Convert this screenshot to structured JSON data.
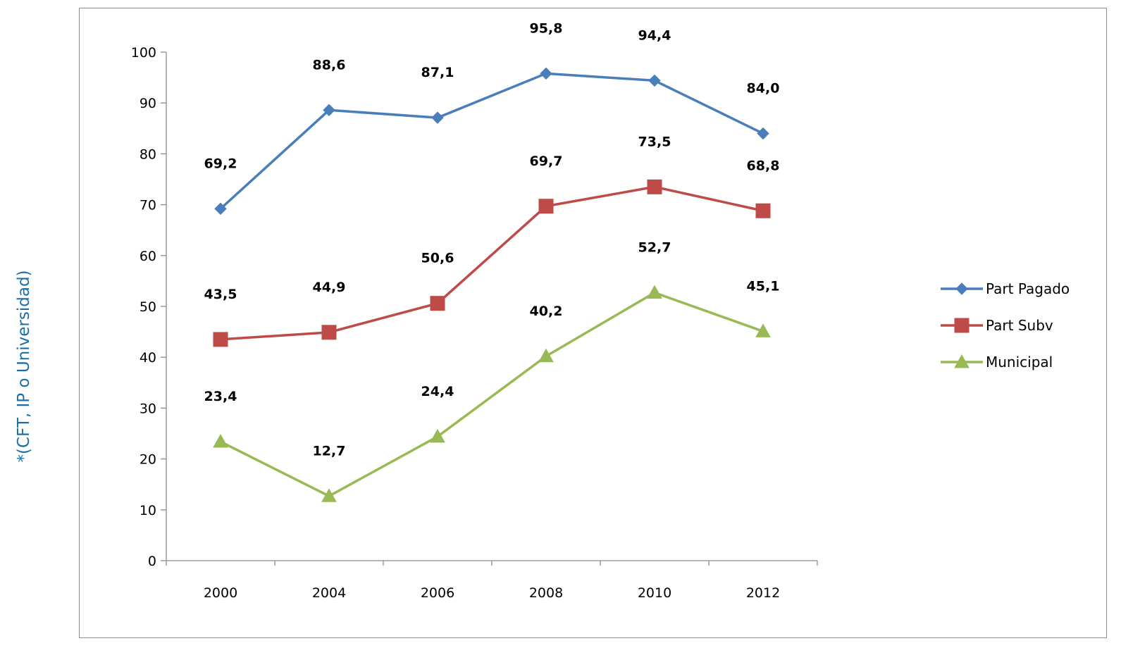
{
  "side_note": "*(CFT, IP o Universidad)",
  "chart_data": {
    "type": "line",
    "title": "",
    "xlabel": "",
    "ylabel": "",
    "categories": [
      "2000",
      "2004",
      "2006",
      "2008",
      "2010",
      "2012"
    ],
    "ylim": [
      0,
      100
    ],
    "yticks": [
      0,
      10,
      20,
      30,
      40,
      50,
      60,
      70,
      80,
      90,
      100
    ],
    "grid": false,
    "legend_position": "right",
    "series": [
      {
        "name": "Part Pagado",
        "marker": "diamond",
        "color": "#4a7ebb",
        "values": [
          69.2,
          88.6,
          87.1,
          95.8,
          94.4,
          84.0
        ],
        "labels": [
          "69,2",
          "88,6",
          "87,1",
          "95,8",
          "94,4",
          "84,0"
        ]
      },
      {
        "name": "Part Subv",
        "marker": "square",
        "color": "#be4b48",
        "values": [
          43.5,
          44.9,
          50.6,
          69.7,
          73.5,
          68.8
        ],
        "labels": [
          "43,5",
          "44,9",
          "50,6",
          "69,7",
          "73,5",
          "68,8"
        ]
      },
      {
        "name": "Municipal",
        "marker": "triangle",
        "color": "#98b954",
        "values": [
          23.4,
          12.7,
          24.4,
          40.2,
          52.7,
          45.1
        ],
        "labels": [
          "23,4",
          "12,7",
          "24,4",
          "40,2",
          "52,7",
          "45,1"
        ]
      }
    ]
  }
}
